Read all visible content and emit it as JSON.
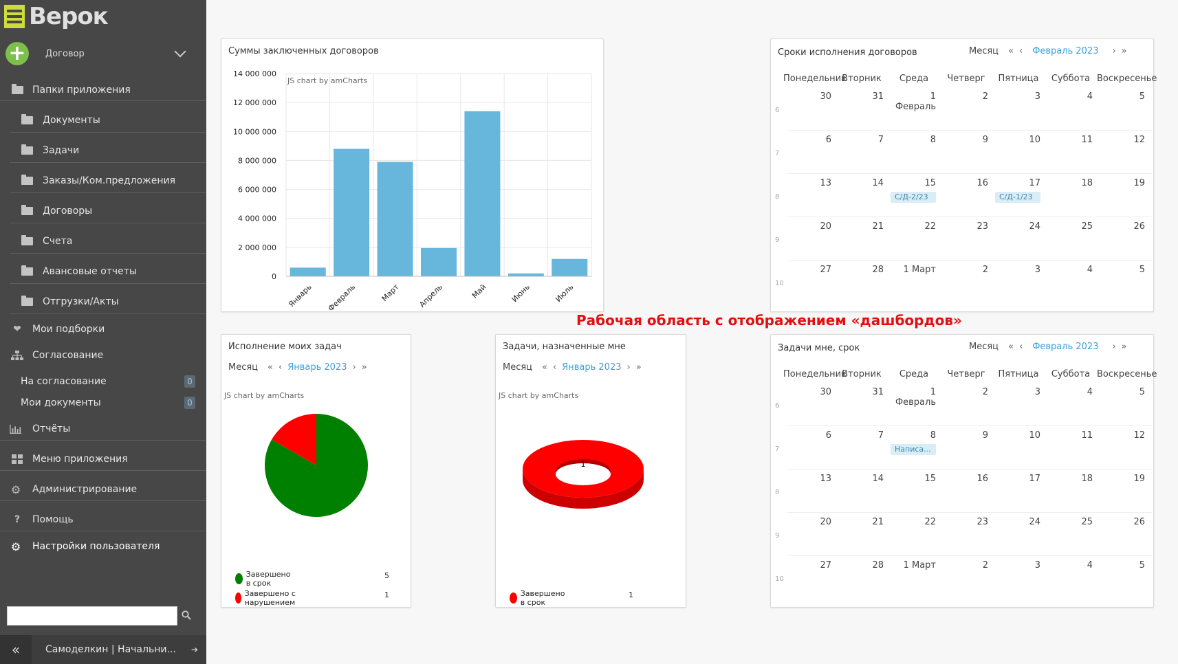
{
  "sidebar": {
    "logo": "Верок",
    "add_label": "Договор",
    "folders_title": "Папки приложения",
    "folders": [
      "Документы",
      "Задачи",
      "Заказы/Ком.предложения",
      "Договоры",
      "Счета",
      "Авансовые отчеты",
      "Отгрузки/Акты"
    ],
    "favorites": "Мои подборки",
    "approval": "Согласование",
    "approval_items": [
      {
        "label": "На согласование",
        "count": "0"
      },
      {
        "label": "Мои документы",
        "count": "0"
      }
    ],
    "reports": "Отчёты",
    "app_menu": "Меню приложения",
    "admin": "Администрирование",
    "help": "Помощь",
    "user_settings": "Настройки пользователя",
    "search_placeholder": "",
    "user": "Самоделкин | Начальни..."
  },
  "annotation": "Рабочая область с отображением «дашбордов»",
  "contracts_chart": {
    "title": "Суммы заключенных договоров",
    "credit": "JS chart by amCharts",
    "chart_data": {
      "type": "bar",
      "categories": [
        "Январь",
        "Февраль",
        "Март",
        "Апрель",
        "Май",
        "Июнь",
        "Июль"
      ],
      "values": [
        600000,
        8800000,
        7900000,
        1950000,
        11400000,
        200000,
        1200000
      ],
      "ylim": [
        0,
        14000000
      ],
      "yticks": [
        "14 000 000",
        "12 000 000",
        "10 000 000",
        "8 000 000",
        "6 000 000",
        "4 000 000",
        "2 000 000",
        "0"
      ],
      "color": "#67b7dc",
      "grid": true
    }
  },
  "calendar_contracts": {
    "title": "Сроки исполнения договоров",
    "view": "Месяц",
    "month": "Февраль 2023",
    "dows": [
      "Понедельник",
      "Вторник",
      "Среда",
      "Четверг",
      "Пятница",
      "Суббота",
      "Воскресенье"
    ],
    "weeks": [
      {
        "num": "6",
        "days": [
          "30",
          "31",
          "1 Февраль",
          "2",
          "3",
          "4",
          "5"
        ]
      },
      {
        "num": "7",
        "days": [
          "6",
          "7",
          "8",
          "9",
          "10",
          "11",
          "12"
        ]
      },
      {
        "num": "8",
        "days": [
          "13",
          "14",
          "15",
          "16",
          "17",
          "18",
          "19"
        ]
      },
      {
        "num": "9",
        "days": [
          "20",
          "21",
          "22",
          "23",
          "24",
          "25",
          "26"
        ]
      },
      {
        "num": "10",
        "days": [
          "27",
          "28",
          "1 Март",
          "2",
          "3",
          "4",
          "5"
        ]
      }
    ],
    "events": [
      {
        "week": 2,
        "day": 2,
        "label": "С/Д-2/23"
      },
      {
        "week": 2,
        "day": 4,
        "label": "С/Д-1/23"
      }
    ]
  },
  "my_tasks": {
    "title": "Исполнение моих задач",
    "view": "Месяц",
    "month": "Январь 2023",
    "credit": "JS chart by amCharts",
    "chart_data": {
      "type": "pie",
      "slices": [
        {
          "name": "Завершено в срок",
          "value": 5,
          "color": "#008000"
        },
        {
          "name": "Завершено с нарушением",
          "value": 1,
          "color": "#ff0000"
        }
      ]
    }
  },
  "assigned_tasks": {
    "title": "Задачи, назначенные мне",
    "view": "Месяц",
    "month": "Январь 2023",
    "credit": "JS chart by amCharts",
    "chart_data": {
      "type": "pie",
      "donut": true,
      "center_label": "1",
      "slices": [
        {
          "name": "Завершено в срок",
          "value": 1,
          "color": "#ff0000"
        }
      ]
    }
  },
  "calendar_tasks": {
    "title": "Задачи мне, срок",
    "view": "Месяц",
    "month": "Февраль 2023",
    "dows": [
      "Понедельник",
      "Вторник",
      "Среда",
      "Четверг",
      "Пятница",
      "Суббота",
      "Воскресенье"
    ],
    "weeks": [
      {
        "num": "6",
        "days": [
          "30",
          "31",
          "1 Февраль",
          "2",
          "3",
          "4",
          "5"
        ]
      },
      {
        "num": "7",
        "days": [
          "6",
          "7",
          "8",
          "9",
          "10",
          "11",
          "12"
        ]
      },
      {
        "num": "8",
        "days": [
          "13",
          "14",
          "15",
          "16",
          "17",
          "18",
          "19"
        ]
      },
      {
        "num": "9",
        "days": [
          "20",
          "21",
          "22",
          "23",
          "24",
          "25",
          "26"
        ]
      },
      {
        "num": "10",
        "days": [
          "27",
          "28",
          "1 Март",
          "2",
          "3",
          "4",
          "5"
        ]
      }
    ],
    "events": [
      {
        "week": 1,
        "day": 2,
        "label": "Написа..."
      }
    ]
  }
}
